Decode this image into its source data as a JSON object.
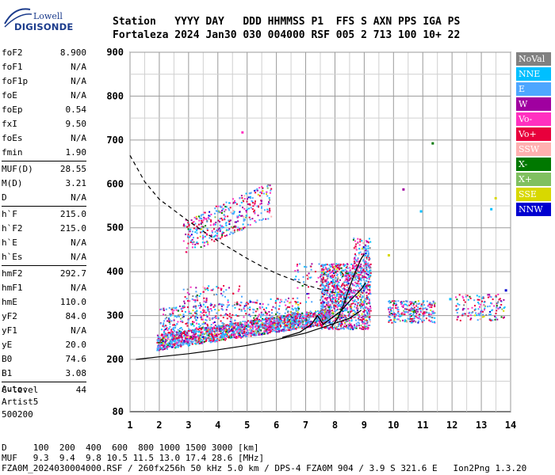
{
  "logo": {
    "line1": "Lowell",
    "line2": "DIGISONDE"
  },
  "header": {
    "row1": "Station   YYYY DAY   DDD HHMMSS P1  FFS S AXN PPS IGA PS",
    "row2": "Fortaleza 2024 Jan30 030 004000 RSF 005 2 713 100 10+ 22"
  },
  "params": [
    [
      {
        "k": "foF2",
        "v": "8.900"
      },
      {
        "k": "foF1",
        "v": "N/A"
      },
      {
        "k": "foF1p",
        "v": "N/A"
      },
      {
        "k": "foE",
        "v": "N/A"
      },
      {
        "k": "foEp",
        "v": "0.54"
      },
      {
        "k": "fxI",
        "v": "9.50"
      },
      {
        "k": "foEs",
        "v": "N/A"
      },
      {
        "k": "fmin",
        "v": "1.90"
      }
    ],
    [
      {
        "k": "MUF(D)",
        "v": "28.55"
      },
      {
        "k": "M(D)",
        "v": "3.21"
      },
      {
        "k": "D",
        "v": "N/A"
      }
    ],
    [
      {
        "k": "h`F",
        "v": "215.0"
      },
      {
        "k": "h`F2",
        "v": "215.0"
      },
      {
        "k": "h`E",
        "v": "N/A"
      },
      {
        "k": "h`Es",
        "v": "N/A"
      }
    ],
    [
      {
        "k": "hmF2",
        "v": "292.7"
      },
      {
        "k": "hmF1",
        "v": "N/A"
      },
      {
        "k": "hmE",
        "v": "110.0"
      },
      {
        "k": "yF2",
        "v": "84.0"
      },
      {
        "k": "yF1",
        "v": "N/A"
      },
      {
        "k": "yE",
        "v": "20.0"
      },
      {
        "k": "B0",
        "v": "74.6"
      },
      {
        "k": "B1",
        "v": "3.08"
      }
    ],
    [
      {
        "k": "C-level",
        "v": "44"
      }
    ]
  ],
  "auto": {
    "l1": "Auto:",
    "l2": "Artist5",
    "l3": "500200"
  },
  "legend": [
    {
      "label": "NoVal",
      "color": "#808080"
    },
    {
      "label": "NNE",
      "color": "#00bfff"
    },
    {
      "label": "E",
      "color": "#4da6ff"
    },
    {
      "label": "W",
      "color": "#a000a0"
    },
    {
      "label": "Vo-",
      "color": "#ff30c0"
    },
    {
      "label": "Vo+",
      "color": "#e8003c"
    },
    {
      "label": "SSW",
      "color": "#ffb0b0"
    },
    {
      "label": "X-",
      "color": "#007800"
    },
    {
      "label": "X+",
      "color": "#80c060"
    },
    {
      "label": "SSE",
      "color": "#d8d800"
    },
    {
      "label": "NNW",
      "color": "#0000d0"
    }
  ],
  "footer": {
    "row1": "D     100  200  400  600  800 1000 1500 3000 [km]",
    "row2": "MUF   9.3  9.4  9.8 10.5 11.5 13.0 17.4 28.6 [MHz]",
    "row3": "FZA0M_2024030004000.RSF / 260fx256h 50 kHz 5.0 km / DPS-4 FZA0M 904 / 3.9 S 321.6 E   Ion2Png 1.3.20"
  },
  "chart_data": {
    "type": "scatter",
    "title": "",
    "xlabel": "",
    "ylabel": "",
    "xlim": [
      1,
      14
    ],
    "ylim": [
      80,
      900
    ],
    "x_ticks": [
      1,
      2,
      3,
      4,
      5,
      6,
      7,
      8,
      9,
      10,
      11,
      12,
      13,
      14
    ],
    "y_ticks": [
      200,
      300,
      400,
      500,
      600,
      700,
      800,
      900
    ],
    "y_tick_labels": [
      "200",
      "300",
      "400",
      "500",
      "600",
      "700",
      "800",
      "900"
    ],
    "bottom_label": "80",
    "grid": true,
    "series": [
      {
        "kind": "solid-line",
        "values": [
          [
            1.2,
            200
          ],
          [
            2,
            206
          ],
          [
            3,
            213
          ],
          [
            4,
            222
          ],
          [
            5,
            232
          ],
          [
            6,
            245
          ],
          [
            7,
            260
          ],
          [
            7.8,
            278
          ],
          [
            8.5,
            294
          ],
          [
            8.9,
            312
          ]
        ]
      },
      {
        "kind": "dashed-line",
        "values": [
          [
            1.0,
            665
          ],
          [
            1.5,
            605
          ],
          [
            2,
            565
          ],
          [
            2.5,
            540
          ],
          [
            3,
            515
          ],
          [
            3.5,
            492
          ],
          [
            4,
            470
          ],
          [
            4.5,
            450
          ],
          [
            5,
            430
          ],
          [
            5.5,
            412
          ],
          [
            6,
            396
          ],
          [
            6.5,
            383
          ],
          [
            7,
            370
          ],
          [
            7.5,
            360
          ],
          [
            8,
            352
          ]
        ]
      },
      {
        "kind": "trace-line",
        "values": [
          [
            7.9,
            275
          ],
          [
            8.1,
            295
          ],
          [
            8.3,
            325
          ],
          [
            8.5,
            365
          ],
          [
            8.7,
            400
          ],
          [
            8.9,
            430
          ],
          [
            9.0,
            440
          ]
        ]
      },
      {
        "kind": "trace-line",
        "values": [
          [
            6.2,
            250
          ],
          [
            6.8,
            262
          ],
          [
            7.2,
            280
          ],
          [
            7.4,
            300
          ],
          [
            7.6,
            280
          ],
          [
            7.8,
            290
          ],
          [
            8.2,
            310
          ],
          [
            8.6,
            340
          ],
          [
            8.9,
            360
          ],
          [
            9.05,
            375
          ]
        ]
      }
    ]
  }
}
